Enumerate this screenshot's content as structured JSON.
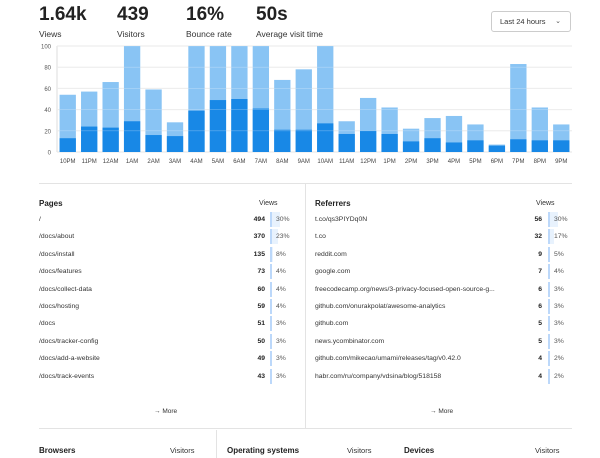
{
  "stats": [
    {
      "value": "1.64k",
      "label": "Views"
    },
    {
      "value": "439",
      "label": "Visitors"
    },
    {
      "value": "16%",
      "label": "Bounce rate"
    },
    {
      "value": "50s",
      "label": "Average visit time"
    }
  ],
  "range": {
    "label": "Last 24 hours"
  },
  "colors": {
    "views": "#89c4f4",
    "visitors": "#1888e6",
    "accent_bar": "#e8f2fd"
  },
  "chart_data": {
    "type": "bar",
    "categories": [
      "10PM",
      "11PM",
      "12AM",
      "1AM",
      "2AM",
      "3AM",
      "4AM",
      "5AM",
      "6AM",
      "7AM",
      "8AM",
      "9AM",
      "10AM",
      "11AM",
      "12PM",
      "1PM",
      "2PM",
      "3PM",
      "4PM",
      "5PM",
      "6PM",
      "7PM",
      "8PM",
      "9PM"
    ],
    "series": [
      {
        "name": "Views",
        "values": [
          54,
          57,
          66,
          104,
          59,
          28,
          104,
          104,
          104,
          104,
          68,
          78,
          104,
          29,
          51,
          42,
          22,
          32,
          34,
          26,
          7,
          83,
          42,
          26
        ]
      },
      {
        "name": "Visitors",
        "values": [
          13,
          24,
          23,
          29,
          16,
          15,
          39,
          49,
          50,
          41,
          21,
          21,
          27,
          17,
          20,
          17,
          10,
          13,
          9,
          11,
          6,
          12,
          11,
          11
        ]
      }
    ],
    "ylim": [
      0,
      100
    ],
    "yticks": [
      0,
      20,
      40,
      60,
      80,
      100
    ],
    "stacked_overlap": true,
    "grid": true
  },
  "pages": {
    "title": "Pages",
    "col": "Views",
    "rows": [
      {
        "name": "/",
        "views": "494",
        "pct": "30%",
        "frac": 0.3
      },
      {
        "name": "/docs/about",
        "views": "370",
        "pct": "23%",
        "frac": 0.23
      },
      {
        "name": "/docs/install",
        "views": "135",
        "pct": "8%",
        "frac": 0.08
      },
      {
        "name": "/docs/features",
        "views": "73",
        "pct": "4%",
        "frac": 0.04
      },
      {
        "name": "/docs/collect-data",
        "views": "60",
        "pct": "4%",
        "frac": 0.04
      },
      {
        "name": "/docs/hosting",
        "views": "59",
        "pct": "4%",
        "frac": 0.04
      },
      {
        "name": "/docs",
        "views": "51",
        "pct": "3%",
        "frac": 0.03
      },
      {
        "name": "/docs/tracker-config",
        "views": "50",
        "pct": "3%",
        "frac": 0.03
      },
      {
        "name": "/docs/add-a-website",
        "views": "49",
        "pct": "3%",
        "frac": 0.03
      },
      {
        "name": "/docs/track-events",
        "views": "43",
        "pct": "3%",
        "frac": 0.03
      }
    ],
    "more": "More"
  },
  "referrers": {
    "title": "Referrers",
    "col": "Views",
    "rows": [
      {
        "name": "t.co/qs3PIYDq0N",
        "views": "56",
        "pct": "30%",
        "frac": 0.3
      },
      {
        "name": "t.co",
        "views": "32",
        "pct": "17%",
        "frac": 0.17
      },
      {
        "name": "reddit.com",
        "views": "9",
        "pct": "5%",
        "frac": 0.05
      },
      {
        "name": "google.com",
        "views": "7",
        "pct": "4%",
        "frac": 0.04
      },
      {
        "name": "freecodecamp.org/news/3-privacy-focused-open-source-g...",
        "views": "6",
        "pct": "3%",
        "frac": 0.03
      },
      {
        "name": "github.com/onurakpolat/awesome-analytics",
        "views": "6",
        "pct": "3%",
        "frac": 0.03
      },
      {
        "name": "github.com",
        "views": "5",
        "pct": "3%",
        "frac": 0.03
      },
      {
        "name": "news.ycombinator.com",
        "views": "5",
        "pct": "3%",
        "frac": 0.03
      },
      {
        "name": "github.com/mikecao/umami/releases/tag/v0.42.0",
        "views": "4",
        "pct": "2%",
        "frac": 0.02
      },
      {
        "name": "habr.com/ru/company/vdsina/blog/518158",
        "views": "4",
        "pct": "2%",
        "frac": 0.02
      }
    ],
    "more": "More"
  },
  "bottom": {
    "browsers": {
      "title": "Browsers",
      "col": "Visitors"
    },
    "os": {
      "title": "Operating systems",
      "col": "Visitors"
    },
    "devices": {
      "title": "Devices",
      "col": "Visitors"
    }
  }
}
